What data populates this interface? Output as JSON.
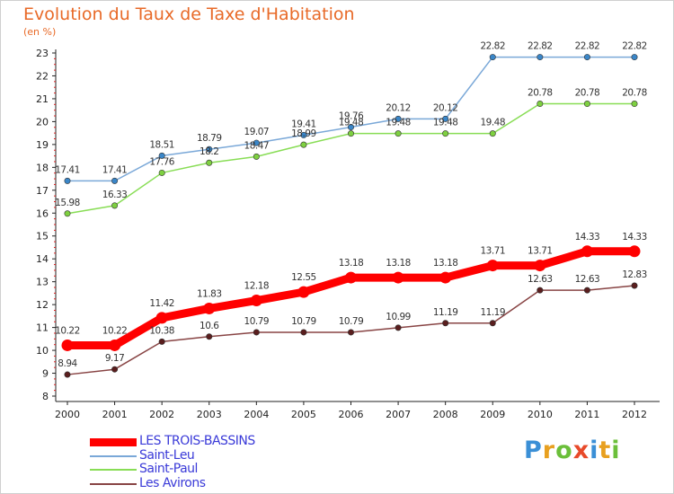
{
  "header": {
    "title": "Evolution du Taux de Taxe d'Habitation",
    "unit": "(en %)"
  },
  "logo": {
    "letters": [
      "P",
      "r",
      "o",
      "x",
      "i",
      "t",
      "i"
    ],
    "colors": [
      "#3a8fd6",
      "#e8a020",
      "#6bbf3a",
      "#e84a2a",
      "#3a8fd6",
      "#e8a020",
      "#6bbf3a"
    ]
  },
  "chart_data": {
    "type": "line",
    "x": [
      "2000",
      "2001",
      "2002",
      "2003",
      "2004",
      "2005",
      "2006",
      "2007",
      "2008",
      "2009",
      "2010",
      "2011",
      "2012"
    ],
    "ylim": [
      8,
      23
    ],
    "yticks": [
      "8",
      "9",
      "10",
      "11",
      "12",
      "13",
      "14",
      "15",
      "16",
      "17",
      "18",
      "19",
      "20",
      "21",
      "22",
      "23"
    ],
    "grid": false,
    "legend_position": "bottom-left",
    "series": [
      {
        "name": "LES TROIS-BASSINS",
        "color": "#ff0000",
        "values": [
          10.22,
          10.22,
          11.42,
          11.83,
          12.18,
          12.55,
          13.18,
          13.18,
          13.18,
          13.71,
          13.71,
          14.33,
          14.33
        ],
        "labels": [
          "10.22",
          "10.22",
          "11.42",
          "11.83",
          "12.18",
          "12.55",
          "13.18",
          "13.18",
          "13.18",
          "13.71",
          "13.71",
          "14.33",
          "14.33"
        ]
      },
      {
        "name": "Saint-Leu",
        "color": "#7aa8d8",
        "values": [
          17.41,
          17.41,
          18.51,
          18.79,
          19.07,
          19.41,
          19.76,
          20.12,
          20.12,
          22.82,
          22.82,
          22.82,
          22.82
        ],
        "labels": [
          "17.41",
          "17.41",
          "18.51",
          "18.79",
          "19.07",
          "19.41",
          "19.76",
          "20.12",
          "20.12",
          "22.82",
          "22.82",
          "22.82",
          "22.82"
        ]
      },
      {
        "name": "Saint-Paul",
        "color": "#88dd55",
        "values": [
          15.98,
          16.33,
          17.76,
          18.2,
          18.47,
          18.99,
          19.48,
          19.48,
          19.48,
          19.48,
          20.78,
          20.78,
          20.78
        ],
        "labels": [
          "15.98",
          "16.33",
          "17.76",
          "18.2",
          "18.47",
          "18.99",
          "19.48",
          "19.48",
          "19.48",
          "19.48",
          "20.78",
          "20.78",
          "20.78"
        ]
      },
      {
        "name": "Les Avirons",
        "color": "#884444",
        "values": [
          8.94,
          9.17,
          10.38,
          10.6,
          10.79,
          10.79,
          10.79,
          10.99,
          11.19,
          11.19,
          12.63,
          12.63,
          12.83
        ],
        "labels": [
          "8.94",
          "9.17",
          "10.38",
          "10.6",
          "10.79",
          "10.79",
          "10.79",
          "10.99",
          "11.19",
          "11.19",
          "12.63",
          "12.63",
          "12.83"
        ]
      }
    ]
  }
}
